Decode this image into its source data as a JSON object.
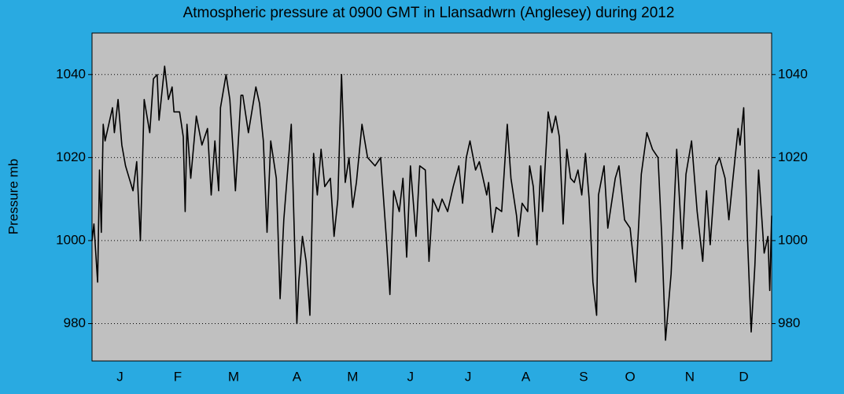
{
  "chart_data": {
    "type": "line",
    "title": "Atmospheric pressure at 0900 GMT in Llansadwrn (Anglesey) during 2012",
    "y_label": "Pressure mb",
    "color": "#000000",
    "grid": true,
    "xlim": [
      1,
      366
    ],
    "ylim": [
      971,
      1050
    ],
    "yticks": [
      980,
      1000,
      1020,
      1040
    ],
    "xticks": [
      {
        "value": 16,
        "label": "J"
      },
      {
        "value": 47,
        "label": "F"
      },
      {
        "value": 77,
        "label": "M"
      },
      {
        "value": 111,
        "label": "A"
      },
      {
        "value": 141,
        "label": "M"
      },
      {
        "value": 172,
        "label": "J"
      },
      {
        "value": 203,
        "label": "J"
      },
      {
        "value": 234,
        "label": "A"
      },
      {
        "value": 265,
        "label": "S"
      },
      {
        "value": 290,
        "label": "O"
      },
      {
        "value": 322,
        "label": "N"
      },
      {
        "value": 351,
        "label": "D"
      }
    ],
    "x": [
      1,
      2,
      4,
      5,
      6,
      7,
      8,
      10,
      12,
      13,
      15,
      17,
      19,
      21,
      23,
      25,
      27,
      29,
      32,
      34,
      36,
      37,
      40,
      42,
      44,
      45,
      48,
      50,
      51,
      52,
      54,
      57,
      60,
      63,
      65,
      67,
      69,
      70,
      73,
      75,
      77,
      78,
      81,
      82,
      85,
      89,
      91,
      93,
      95,
      97,
      100,
      102,
      104,
      108,
      111,
      112,
      114,
      116,
      118,
      120,
      122,
      124,
      126,
      129,
      131,
      133,
      135,
      137,
      139,
      141,
      143,
      146,
      149,
      153,
      156,
      159,
      161,
      163,
      166,
      168,
      170,
      172,
      175,
      177,
      180,
      182,
      184,
      187,
      189,
      192,
      195,
      198,
      200,
      202,
      204,
      207,
      209,
      213,
      214,
      216,
      218,
      221,
      224,
      226,
      229,
      230,
      232,
      235,
      236,
      238,
      240,
      242,
      243,
      246,
      248,
      250,
      252,
      254,
      256,
      258,
      260,
      262,
      264,
      266,
      268,
      270,
      272,
      273,
      276,
      278,
      282,
      284,
      287,
      290,
      293,
      296,
      299,
      302,
      305,
      307,
      309,
      312,
      315,
      318,
      320,
      323,
      326,
      329,
      331,
      333,
      336,
      338,
      341,
      343,
      345,
      348,
      349,
      351,
      353,
      355,
      357,
      359,
      362,
      364,
      365,
      366
    ],
    "values": [
      1000,
      1004,
      990,
      1017,
      1002,
      1028,
      1024,
      1028,
      1032,
      1026,
      1034,
      1023,
      1018,
      1015,
      1012,
      1019,
      1000,
      1034,
      1026,
      1039,
      1040,
      1029,
      1042,
      1034,
      1037,
      1031,
      1031,
      1025,
      1007,
      1028,
      1015,
      1030,
      1023,
      1027,
      1011,
      1024,
      1012,
      1032,
      1040,
      1034,
      1020,
      1012,
      1035,
      1035,
      1026,
      1037,
      1033,
      1024,
      1002,
      1024,
      1015,
      986,
      1005,
      1028,
      980,
      990,
      1001,
      995,
      982,
      1021,
      1011,
      1022,
      1013,
      1015,
      1001,
      1010,
      1040,
      1014,
      1020,
      1008,
      1014,
      1028,
      1020,
      1018,
      1020,
      1001,
      987,
      1012,
      1007,
      1015,
      996,
      1018,
      1001,
      1018,
      1017,
      995,
      1010,
      1007,
      1010,
      1007,
      1013,
      1018,
      1009,
      1020,
      1024,
      1017,
      1019,
      1011,
      1014,
      1002,
      1008,
      1007,
      1028,
      1015,
      1006,
      1001,
      1009,
      1007,
      1018,
      1013,
      999,
      1018,
      1007,
      1031,
      1026,
      1030,
      1025,
      1004,
      1022,
      1015,
      1014,
      1017,
      1011,
      1021,
      1010,
      990,
      982,
      1011,
      1018,
      1003,
      1015,
      1018,
      1005,
      1003,
      990,
      1016,
      1026,
      1022,
      1020,
      1001,
      976,
      992,
      1022,
      998,
      1016,
      1024,
      1007,
      995,
      1012,
      999,
      1018,
      1020,
      1015,
      1005,
      1014,
      1027,
      1023,
      1032,
      1001,
      978,
      994,
      1017,
      997,
      1001,
      988,
      1006
    ]
  }
}
